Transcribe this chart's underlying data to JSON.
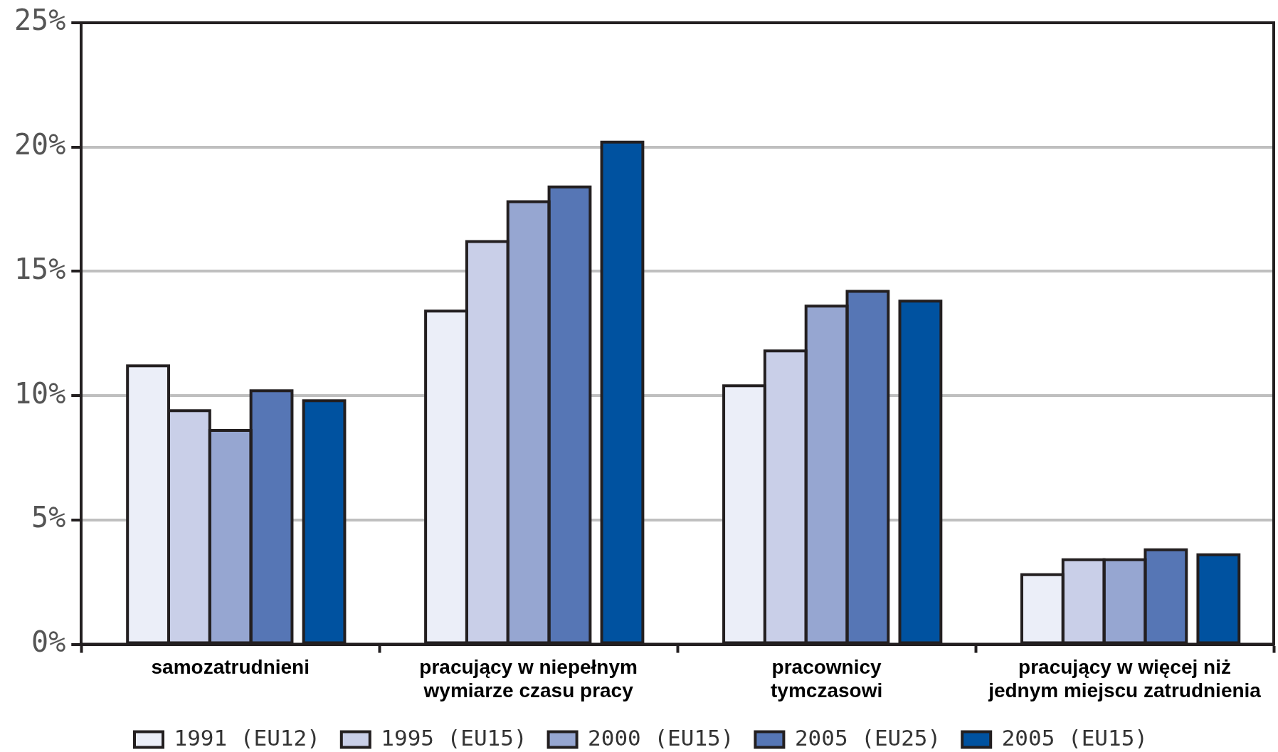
{
  "chart_data": {
    "type": "bar",
    "categories": [
      "samozatrudnieni",
      "pracujący w niepełnym\nwymiarze czasu pracy",
      "pracownicy\ntymczasowi",
      "pracujący w więcej niż\njednym miejscu zatrudnienia"
    ],
    "series": [
      {
        "name": "1991 (EU12)",
        "color": "#ebeef8",
        "values": [
          11.2,
          13.4,
          10.4,
          2.8
        ]
      },
      {
        "name": "1995 (EU15)",
        "color": "#c9cfe8",
        "values": [
          9.4,
          16.2,
          11.8,
          3.4
        ]
      },
      {
        "name": "2000 (EU15)",
        "color": "#96a6d1",
        "values": [
          8.6,
          17.8,
          13.6,
          3.4
        ]
      },
      {
        "name": "2005 (EU25)",
        "color": "#5676b5",
        "values": [
          10.2,
          18.4,
          14.2,
          3.8
        ]
      },
      {
        "name": "2005 (EU15)",
        "color": "#0052a0",
        "values": [
          9.8,
          20.2,
          13.8,
          3.6
        ]
      }
    ],
    "ylim": [
      0,
      25
    ],
    "yticks": [
      {
        "value": 0,
        "label": "0%"
      },
      {
        "value": 5,
        "label": "5%"
      },
      {
        "value": 10,
        "label": "10%"
      },
      {
        "value": 15,
        "label": "15%"
      },
      {
        "value": 20,
        "label": "20%"
      },
      {
        "value": 25,
        "label": "25%"
      }
    ],
    "grid": "y",
    "legend": "bottom"
  }
}
